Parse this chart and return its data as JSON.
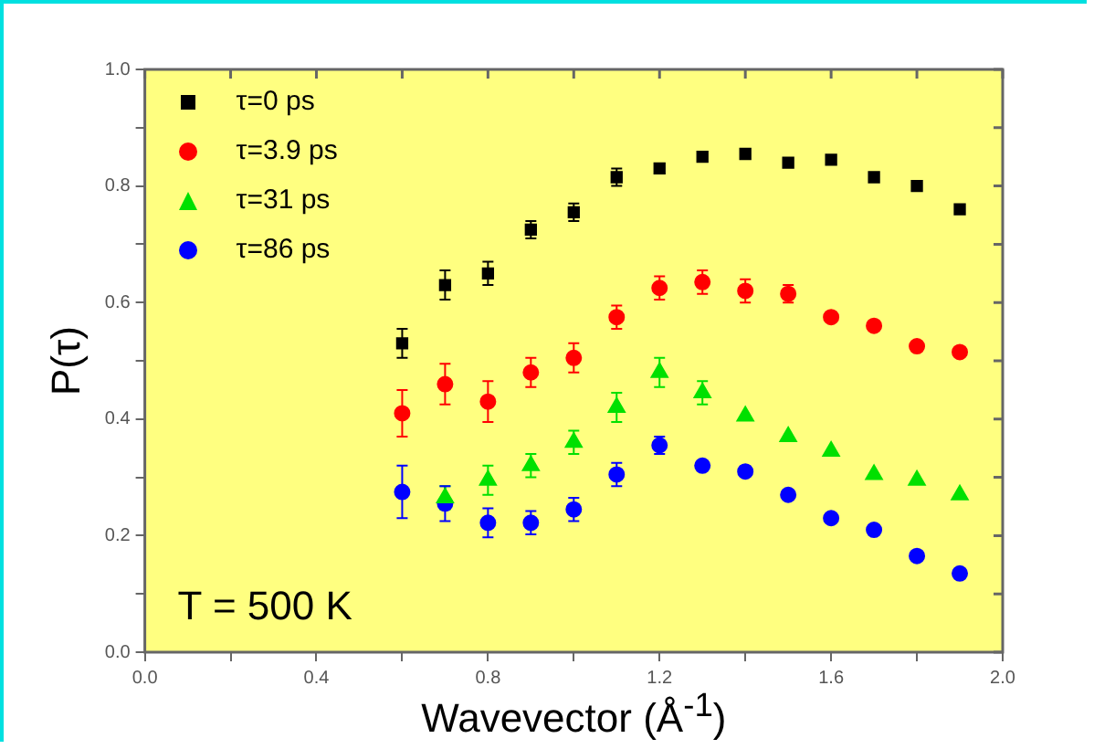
{
  "chart_data": {
    "type": "scatter",
    "xlabel": "Wavevector (Å$^{-1}$)",
    "ylabel": "P(τ)",
    "annotations": [
      "T = 500 K"
    ],
    "x": [
      0.6,
      0.7,
      0.8,
      0.9,
      1.0,
      1.1,
      1.2,
      1.3,
      1.4,
      1.5,
      1.6,
      1.7,
      1.8,
      1.9
    ],
    "xlim": [
      0,
      2
    ],
    "ylim": [
      0,
      1
    ],
    "xticks": [
      {
        "value": 0,
        "label": "0.0"
      },
      {
        "value": 0.2,
        "label": null
      },
      {
        "value": 0.4,
        "label": "0.4"
      },
      {
        "value": 0.6,
        "label": null
      },
      {
        "value": 0.8,
        "label": "0.8"
      },
      {
        "value": 1.0,
        "label": null
      },
      {
        "value": 1.2,
        "label": "1.2"
      },
      {
        "value": 1.4,
        "label": null
      },
      {
        "value": 1.6,
        "label": "1.6"
      },
      {
        "value": 1.8,
        "label": null
      },
      {
        "value": 2.0,
        "label": "2.0"
      }
    ],
    "yticks": [
      {
        "value": 0,
        "label": "0.0"
      },
      {
        "value": 0.1,
        "label": null
      },
      {
        "value": 0.2,
        "label": "0.2"
      },
      {
        "value": 0.3,
        "label": null
      },
      {
        "value": 0.4,
        "label": "0.4"
      },
      {
        "value": 0.5,
        "label": null
      },
      {
        "value": 0.6,
        "label": "0.6"
      },
      {
        "value": 0.7,
        "label": null
      },
      {
        "value": 0.8,
        "label": "0.8"
      },
      {
        "value": 0.9,
        "label": null
      },
      {
        "value": 1.0,
        "label": "1.0"
      }
    ],
    "legend": "top left",
    "grid": false,
    "series": [
      {
        "name": "τ=0 ps",
        "color": "#000000",
        "marker": "square",
        "values": [
          0.53,
          0.63,
          0.65,
          0.725,
          0.755,
          0.815,
          0.83,
          0.85,
          0.855,
          0.84,
          0.845,
          0.815,
          0.8,
          0.76
        ],
        "errors": [
          0.025,
          0.025,
          0.02,
          0.015,
          0.015,
          0.015,
          null,
          null,
          null,
          null,
          null,
          null,
          null,
          null
        ]
      },
      {
        "name": "τ=3.9 ps",
        "color": "#ff0000",
        "marker": "circle",
        "values": [
          0.41,
          0.46,
          0.43,
          0.48,
          0.505,
          0.575,
          0.625,
          0.635,
          0.62,
          0.615,
          0.575,
          0.56,
          0.525,
          0.515
        ],
        "errors": [
          0.04,
          0.035,
          0.035,
          0.025,
          0.025,
          0.02,
          0.02,
          0.02,
          0.02,
          0.015,
          null,
          null,
          null,
          null
        ]
      },
      {
        "name": "τ=31 ps",
        "color": "#00e000",
        "marker": "triangle",
        "values": [
          null,
          0.265,
          0.295,
          0.32,
          0.36,
          0.42,
          0.48,
          0.445,
          0.405,
          0.37,
          0.345,
          0.305,
          0.295,
          0.27
        ],
        "errors": [
          null,
          0.02,
          0.025,
          0.02,
          0.02,
          0.025,
          0.025,
          0.02,
          null,
          null,
          null,
          null,
          null,
          null
        ]
      },
      {
        "name": "τ=86 ps",
        "color": "#0000ff",
        "marker": "circle",
        "values": [
          0.275,
          0.255,
          0.222,
          0.222,
          0.245,
          0.305,
          0.355,
          0.32,
          0.31,
          0.27,
          0.23,
          0.21,
          0.165,
          0.135
        ],
        "errors": [
          0.045,
          0.03,
          0.025,
          0.02,
          0.02,
          0.02,
          0.015,
          null,
          null,
          null,
          null,
          null,
          null,
          null
        ]
      }
    ]
  }
}
